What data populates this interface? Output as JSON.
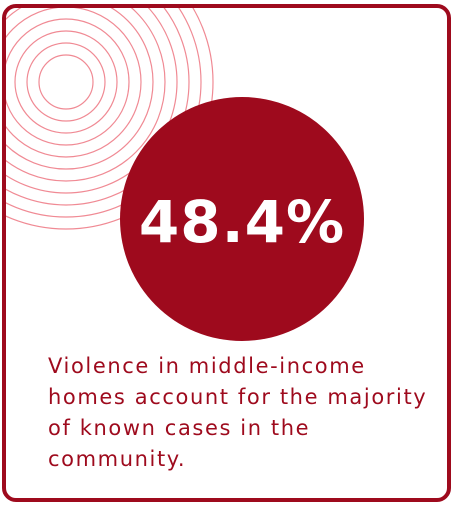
{
  "card": {
    "stat_value": "48.4%",
    "caption": "Violence in middle-income homes account for the majority of known cases in the community."
  },
  "colors": {
    "accent": "#9e0a1d",
    "rings": "#f08a94",
    "background": "#ffffff"
  }
}
